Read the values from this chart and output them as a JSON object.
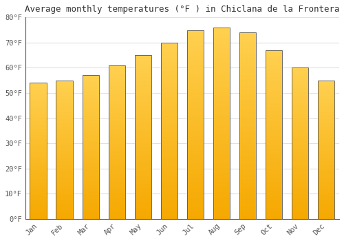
{
  "title": "Average monthly temperatures (°F ) in Chiclana de la Frontera",
  "months": [
    "Jan",
    "Feb",
    "Mar",
    "Apr",
    "May",
    "Jun",
    "Jul",
    "Aug",
    "Sep",
    "Oct",
    "Nov",
    "Dec"
  ],
  "values": [
    54,
    55,
    57,
    61,
    65,
    70,
    75,
    76,
    74,
    67,
    60,
    55
  ],
  "ylim": [
    0,
    80
  ],
  "yticks": [
    0,
    10,
    20,
    30,
    40,
    50,
    60,
    70,
    80
  ],
  "ytick_labels": [
    "0°F",
    "10°F",
    "20°F",
    "30°F",
    "40°F",
    "50°F",
    "60°F",
    "70°F",
    "80°F"
  ],
  "background_color": "#ffffff",
  "grid_color": "#e0e0e0",
  "bar_color_bottom": "#F5A800",
  "bar_color_top": "#FFD050",
  "bar_edge_color": "#555555",
  "title_fontsize": 9,
  "tick_fontsize": 7.5,
  "bar_width": 0.65,
  "n_gradient_steps": 200
}
